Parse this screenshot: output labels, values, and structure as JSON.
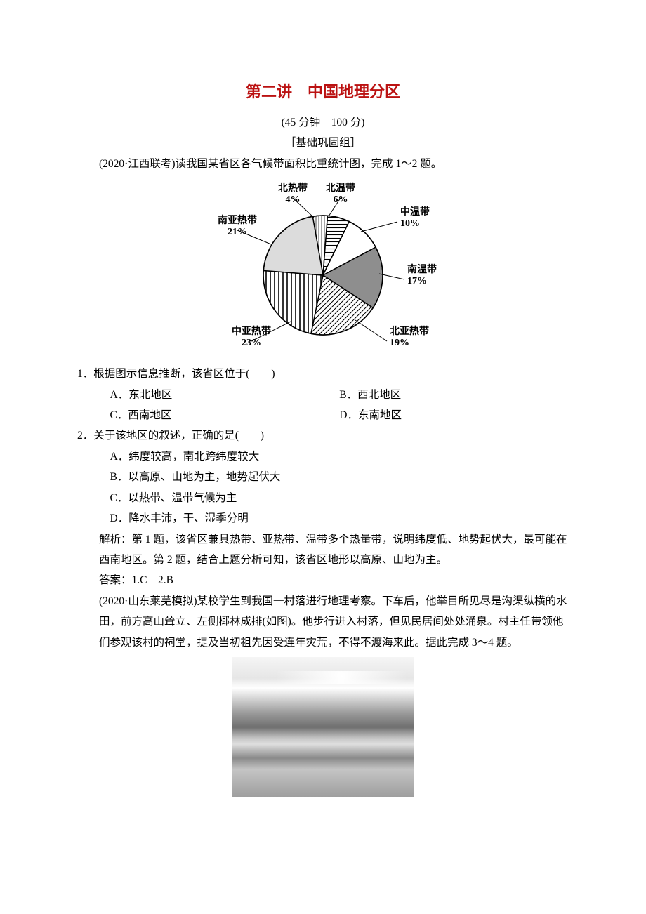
{
  "title": "第二讲　中国地理分区",
  "sub1": "(45 分钟　100 分)",
  "sub2": "［基础巩固组］",
  "intro": "(2020·江西联考)读我国某省区各气候带面积比重统计图，完成 1～2 题。",
  "pie": {
    "type": "pie",
    "background": "#ffffff",
    "outline": "#000000",
    "label_fontsize": 14,
    "label_fontweight": "bold",
    "slices": [
      {
        "name": "北热带",
        "pct": 4,
        "label1": "北热带",
        "label2": "4%",
        "fill": "#ffffff",
        "pattern": "vlines-thin"
      },
      {
        "name": "北温带",
        "pct": 6,
        "label1": "北温带",
        "label2": "6%",
        "fill": "#ffffff",
        "pattern": "hlines"
      },
      {
        "name": "中温带",
        "pct": 10,
        "label1": "中温带",
        "label2": "10%",
        "fill": "#ffffff",
        "pattern": "none"
      },
      {
        "name": "南温带",
        "pct": 17,
        "label1": "南温带",
        "label2": "17%",
        "fill": "#8e8e8e",
        "pattern": "solid"
      },
      {
        "name": "北亚热带",
        "pct": 19,
        "label1": "北亚热带",
        "label2": "19%",
        "fill": "#ffffff",
        "pattern": "diag"
      },
      {
        "name": "中亚热带",
        "pct": 23,
        "label1": "中亚热带",
        "label2": "23%",
        "fill": "#ffffff",
        "pattern": "vlines-thick"
      },
      {
        "name": "南亚热带",
        "pct": 21,
        "label1": "南亚热带",
        "label2": "21%",
        "fill": "#dcdcdc",
        "pattern": "solid"
      }
    ],
    "start_angle_deg": -100
  },
  "q1": {
    "num": "1．",
    "stem": "根据图示信息推断，该省区位于(　　)",
    "opts": {
      "A": "A．东北地区",
      "B": "B．西北地区",
      "C": "C．西南地区",
      "D": "D．东南地区"
    }
  },
  "q2": {
    "num": "2．",
    "stem": "关于该地区的叙述，正确的是(　　)",
    "opts": {
      "A": "A．纬度较高，南北跨纬度较大",
      "B": "B．以高原、山地为主，地势起伏大",
      "C": "C．以热带、温带气候为主",
      "D": "D．降水丰沛，干、湿季分明"
    }
  },
  "expl1": "解析：第 1 题，该省区兼具热带、亚热带、温带多个热量带，说明纬度低、地势起伏大，最可能在西南地区。第 2 题，结合上题分析可知，该省区地形以高原、山地为主。",
  "ans1": "答案：1.C　2.B",
  "intro2": "(2020·山东莱芜模拟)某校学生到我国一村落进行地理考察。下车后，他举目所见尽是沟渠纵横的水田，前方高山耸立、左侧椰林成排(如图)。他步行进入村落，但见民居间处处涌泉。村主任带领他们参观该村的祠堂，提及当初祖先因受连年灾荒，不得不渡海来此。据此完成 3～4 题。"
}
